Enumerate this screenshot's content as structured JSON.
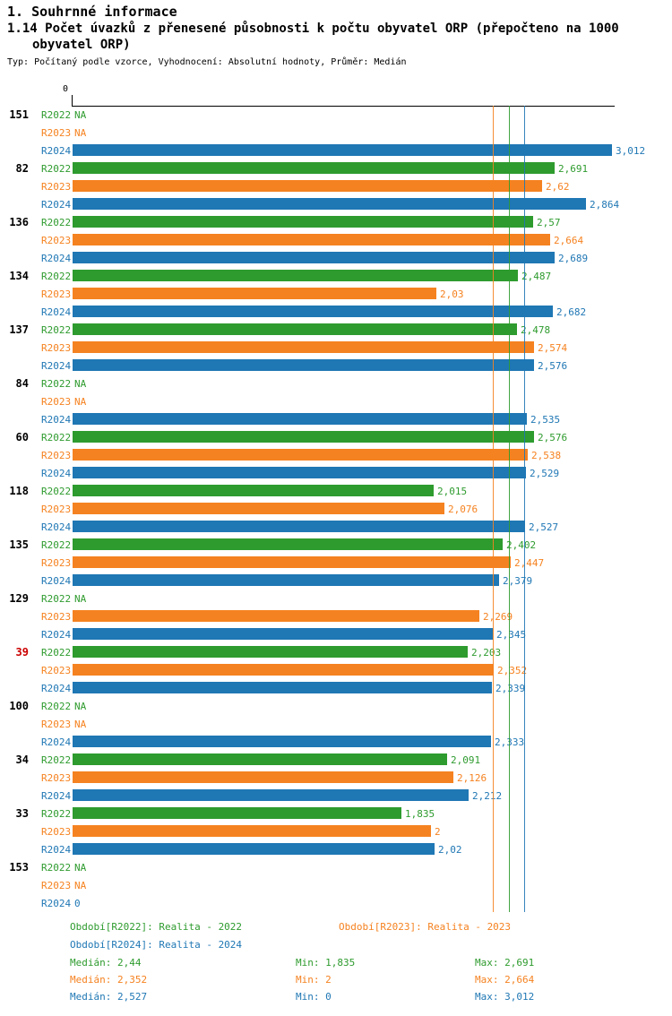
{
  "header": {
    "title": "1. Souhrnné informace",
    "subtitle_line1": "1.14 Počet úvazků z přenesené působnosti k počtu obyvatel ORP (přepočteno na 1000",
    "subtitle_line2": "obyvatel ORP)",
    "meta": "Typ: Počítaný podle vzorce, Vyhodnocení: Absolutní hodnoty, Průměr: Medián"
  },
  "chart_data": {
    "type": "bar",
    "orientation": "horizontal",
    "title": "1.14 Počet úvazků z přenesené působnosti k počtu obyvatel ORP (přepočteno na 1000 obyvatel ORP)",
    "axis_zero_label": "0",
    "xlim": [
      0,
      3.012
    ],
    "grid": false,
    "series": [
      {
        "name": "R2022",
        "color": "#2e9b2e"
      },
      {
        "name": "R2023",
        "color": "#f58220"
      },
      {
        "name": "R2024",
        "color": "#1f77b4"
      }
    ],
    "highlight_color": "#cc0000",
    "groups": [
      {
        "id": "151",
        "highlight": false,
        "values": [
          {
            "series": "R2022",
            "value": null,
            "label": "NA"
          },
          {
            "series": "R2023",
            "value": null,
            "label": "NA"
          },
          {
            "series": "R2024",
            "value": 3.012,
            "label": "3,012"
          }
        ]
      },
      {
        "id": "82",
        "highlight": false,
        "values": [
          {
            "series": "R2022",
            "value": 2.691,
            "label": "2,691"
          },
          {
            "series": "R2023",
            "value": 2.62,
            "label": "2,62"
          },
          {
            "series": "R2024",
            "value": 2.864,
            "label": "2,864"
          }
        ]
      },
      {
        "id": "136",
        "highlight": false,
        "values": [
          {
            "series": "R2022",
            "value": 2.57,
            "label": "2,57"
          },
          {
            "series": "R2023",
            "value": 2.664,
            "label": "2,664"
          },
          {
            "series": "R2024",
            "value": 2.689,
            "label": "2,689"
          }
        ]
      },
      {
        "id": "134",
        "highlight": false,
        "values": [
          {
            "series": "R2022",
            "value": 2.487,
            "label": "2,487"
          },
          {
            "series": "R2023",
            "value": 2.03,
            "label": "2,03"
          },
          {
            "series": "R2024",
            "value": 2.682,
            "label": "2,682"
          }
        ]
      },
      {
        "id": "137",
        "highlight": false,
        "values": [
          {
            "series": "R2022",
            "value": 2.478,
            "label": "2,478"
          },
          {
            "series": "R2023",
            "value": 2.574,
            "label": "2,574"
          },
          {
            "series": "R2024",
            "value": 2.576,
            "label": "2,576"
          }
        ]
      },
      {
        "id": "84",
        "highlight": false,
        "values": [
          {
            "series": "R2022",
            "value": null,
            "label": "NA"
          },
          {
            "series": "R2023",
            "value": null,
            "label": "NA"
          },
          {
            "series": "R2024",
            "value": 2.535,
            "label": "2,535"
          }
        ]
      },
      {
        "id": "60",
        "highlight": false,
        "values": [
          {
            "series": "R2022",
            "value": 2.576,
            "label": "2,576"
          },
          {
            "series": "R2023",
            "value": 2.538,
            "label": "2,538"
          },
          {
            "series": "R2024",
            "value": 2.529,
            "label": "2,529"
          }
        ]
      },
      {
        "id": "118",
        "highlight": false,
        "values": [
          {
            "series": "R2022",
            "value": 2.015,
            "label": "2,015"
          },
          {
            "series": "R2023",
            "value": 2.076,
            "label": "2,076"
          },
          {
            "series": "R2024",
            "value": 2.527,
            "label": "2,527"
          }
        ]
      },
      {
        "id": "135",
        "highlight": false,
        "values": [
          {
            "series": "R2022",
            "value": 2.402,
            "label": "2,402"
          },
          {
            "series": "R2023",
            "value": 2.447,
            "label": "2,447"
          },
          {
            "series": "R2024",
            "value": 2.379,
            "label": "2,379"
          }
        ]
      },
      {
        "id": "129",
        "highlight": false,
        "values": [
          {
            "series": "R2022",
            "value": null,
            "label": "NA"
          },
          {
            "series": "R2023",
            "value": 2.269,
            "label": "2,269"
          },
          {
            "series": "R2024",
            "value": 2.345,
            "label": "2,345"
          }
        ]
      },
      {
        "id": "39",
        "highlight": true,
        "values": [
          {
            "series": "R2022",
            "value": 2.203,
            "label": "2,203"
          },
          {
            "series": "R2023",
            "value": 2.352,
            "label": "2,352"
          },
          {
            "series": "R2024",
            "value": 2.339,
            "label": "2,339"
          }
        ]
      },
      {
        "id": "100",
        "highlight": false,
        "values": [
          {
            "series": "R2022",
            "value": null,
            "label": "NA"
          },
          {
            "series": "R2023",
            "value": null,
            "label": "NA"
          },
          {
            "series": "R2024",
            "value": 2.333,
            "label": "2,333"
          }
        ]
      },
      {
        "id": "34",
        "highlight": false,
        "values": [
          {
            "series": "R2022",
            "value": 2.091,
            "label": "2,091"
          },
          {
            "series": "R2023",
            "value": 2.126,
            "label": "2,126"
          },
          {
            "series": "R2024",
            "value": 2.212,
            "label": "2,212"
          }
        ]
      },
      {
        "id": "33",
        "highlight": false,
        "values": [
          {
            "series": "R2022",
            "value": 1.835,
            "label": "1,835"
          },
          {
            "series": "R2023",
            "value": 2,
            "label": "2"
          },
          {
            "series": "R2024",
            "value": 2.02,
            "label": "2,02"
          }
        ]
      },
      {
        "id": "153",
        "highlight": false,
        "values": [
          {
            "series": "R2022",
            "value": null,
            "label": "NA"
          },
          {
            "series": "R2023",
            "value": null,
            "label": "NA"
          },
          {
            "series": "R2024",
            "value": 0,
            "label": "0"
          }
        ]
      }
    ],
    "median_lines": [
      {
        "series": "R2023",
        "value": 2.352,
        "color": "#f58220"
      },
      {
        "series": "R2022",
        "value": 2.44,
        "color": "#2e9b2e"
      },
      {
        "series": "R2024",
        "value": 2.527,
        "color": "#1f77b4"
      }
    ]
  },
  "legend": {
    "items": [
      {
        "label": "Období[R2022]: Realita - 2022",
        "color": "#2e9b2e"
      },
      {
        "label": "Období[R2023]: Realita - 2023",
        "color": "#f58220"
      },
      {
        "label": "Období[R2024]: Realita - 2024",
        "color": "#1f77b4"
      }
    ]
  },
  "stats": {
    "rows": [
      {
        "series": "R2022",
        "color": "#2e9b2e",
        "median": "Medián: 2,44",
        "min": "Min: 1,835",
        "max": "Max: 2,691"
      },
      {
        "series": "R2023",
        "color": "#f58220",
        "median": "Medián: 2,352",
        "min": "Min: 2",
        "max": "Max: 2,664"
      },
      {
        "series": "R2024",
        "color": "#1f77b4",
        "median": "Medián: 2,527",
        "min": "Min: 0",
        "max": "Max: 3,012"
      }
    ]
  }
}
